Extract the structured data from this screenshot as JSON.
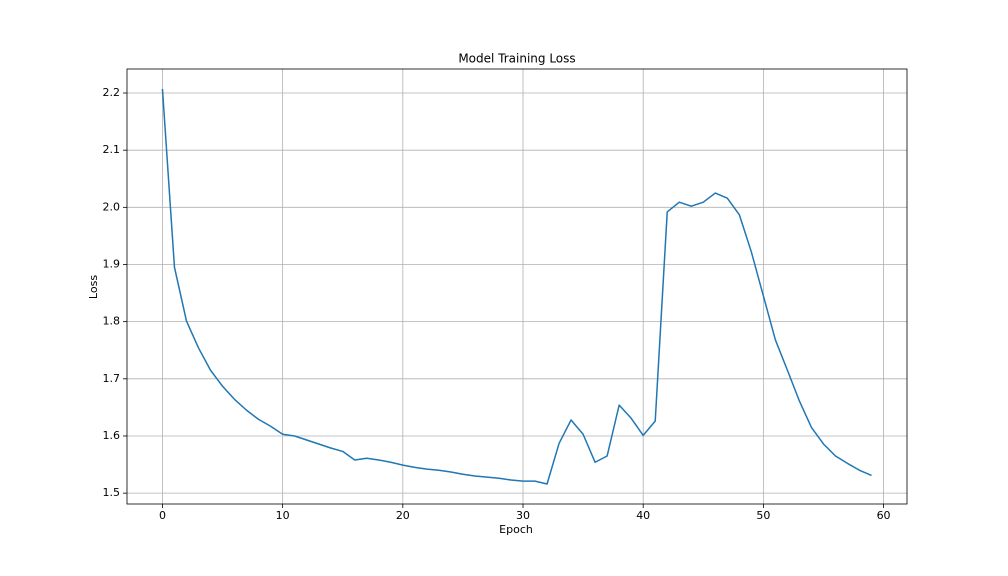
{
  "chart_data": {
    "type": "line",
    "title": "Model Training Loss",
    "x_label": "Epoch",
    "y_label": "Loss",
    "x": [
      0,
      1,
      2,
      3,
      4,
      5,
      6,
      7,
      8,
      9,
      10,
      11,
      12,
      13,
      14,
      15,
      16,
      17,
      18,
      19,
      20,
      21,
      22,
      23,
      24,
      25,
      26,
      27,
      28,
      29,
      30,
      31,
      32,
      33,
      34,
      35,
      36,
      37,
      38,
      39,
      40,
      41,
      42,
      43,
      44,
      45,
      46,
      47,
      48,
      49,
      50,
      51,
      52,
      53,
      54,
      55,
      56,
      57,
      58,
      59
    ],
    "values": [
      2.207,
      1.895,
      1.801,
      1.754,
      1.715,
      1.687,
      1.664,
      1.645,
      1.629,
      1.617,
      1.603,
      1.6,
      1.593,
      1.586,
      1.579,
      1.573,
      1.558,
      1.561,
      1.558,
      1.554,
      1.549,
      1.545,
      1.542,
      1.54,
      1.537,
      1.533,
      1.53,
      1.528,
      1.526,
      1.523,
      1.521,
      1.521,
      1.516,
      1.587,
      1.628,
      1.603,
      1.554,
      1.565,
      1.654,
      1.631,
      1.601,
      1.626,
      1.992,
      2.009,
      2.002,
      2.009,
      2.025,
      2.016,
      1.987,
      1.922,
      1.845,
      1.768,
      1.715,
      1.661,
      1.615,
      1.586,
      1.565,
      1.552,
      1.54,
      1.531
    ],
    "color": "#1f77b4",
    "xlim": [
      -2.95,
      61.95
    ],
    "xticks": [
      0,
      10,
      20,
      30,
      40,
      50,
      60
    ],
    "ylim": [
      1.481,
      2.242
    ],
    "yticks": [
      1.5,
      1.6,
      1.7,
      1.8,
      1.9,
      {
        "value": 2,
        "label": "2.0"
      },
      2.1,
      2.2
    ],
    "grid": true
  }
}
